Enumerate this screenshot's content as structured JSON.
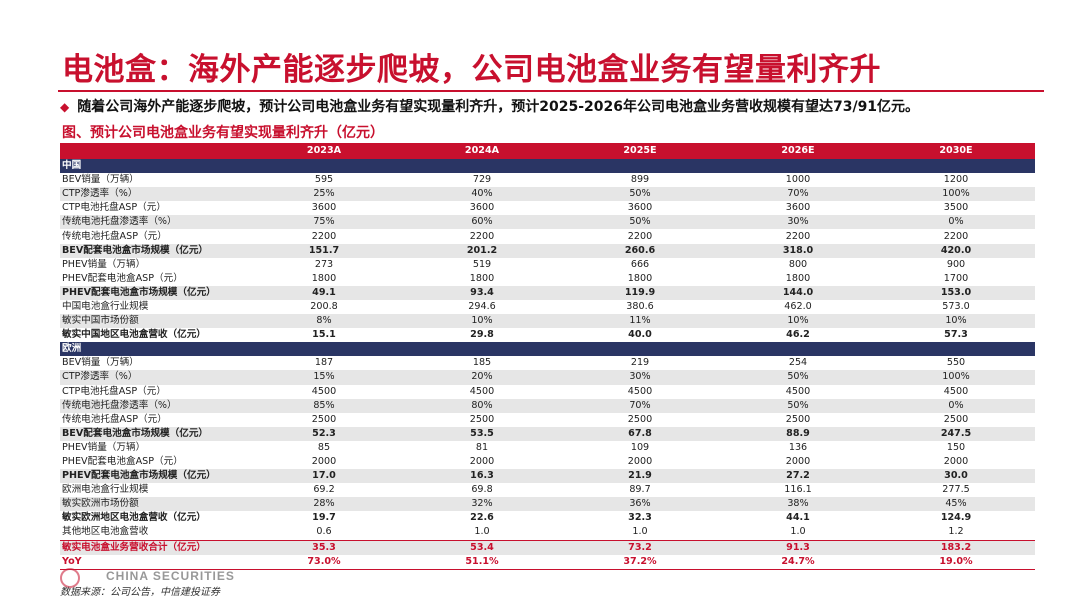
{
  "title": "电池盒：海外产能逐步爬坡，公司电池盒业务有望量利齐升",
  "bullet_mark": "◆",
  "bullet": "随着公司海外产能逐步爬坡，预计公司电池盒业务有望实现量利齐升，预计2025-2026年公司电池盒业务营收规模有望达73/91亿元。",
  "figure_title": "图、预计公司电池盒业务有望实现量利齐升（亿元）",
  "table": {
    "columns": [
      "",
      "2023A",
      "2024A",
      "2025E",
      "2026E",
      "2030E"
    ],
    "rows": [
      {
        "label": "中国",
        "style": "section",
        "values": [
          "",
          "",
          "",
          "",
          ""
        ]
      },
      {
        "label": "BEV销量（万辆）",
        "style": "",
        "values": [
          "595",
          "729",
          "899",
          "1000",
          "1200"
        ]
      },
      {
        "label": "CTP渗透率（%）",
        "style": "alt",
        "values": [
          "25%",
          "40%",
          "50%",
          "70%",
          "100%"
        ]
      },
      {
        "label": "CTP电池托盘ASP（元）",
        "style": "",
        "values": [
          "3600",
          "3600",
          "3600",
          "3600",
          "3500"
        ]
      },
      {
        "label": "传统电池托盘渗透率（%）",
        "style": "alt",
        "values": [
          "75%",
          "60%",
          "50%",
          "30%",
          "0%"
        ]
      },
      {
        "label": "传统电池托盘ASP（元）",
        "style": "",
        "values": [
          "2200",
          "2200",
          "2200",
          "2200",
          "2200"
        ]
      },
      {
        "label": "BEV配套电池盒市场规模（亿元）",
        "style": "alt bold",
        "values": [
          "151.7",
          "201.2",
          "260.6",
          "318.0",
          "420.0"
        ]
      },
      {
        "label": "PHEV销量（万辆）",
        "style": "",
        "values": [
          "273",
          "519",
          "666",
          "800",
          "900"
        ]
      },
      {
        "label": "PHEV配套电池盒ASP（元）",
        "style": "",
        "values": [
          "1800",
          "1800",
          "1800",
          "1800",
          "1700"
        ]
      },
      {
        "label": "PHEV配套电池盒市场规模（亿元）",
        "style": "alt bold",
        "values": [
          "49.1",
          "93.4",
          "119.9",
          "144.0",
          "153.0"
        ]
      },
      {
        "label": "中国电池盒行业规模",
        "style": "",
        "values": [
          "200.8",
          "294.6",
          "380.6",
          "462.0",
          "573.0"
        ]
      },
      {
        "label": "敏实中国市场份额",
        "style": "alt",
        "values": [
          "8%",
          "10%",
          "11%",
          "10%",
          "10%"
        ]
      },
      {
        "label": "敏实中国地区电池盒营收（亿元）",
        "style": "bold",
        "values": [
          "15.1",
          "29.8",
          "40.0",
          "46.2",
          "57.3"
        ]
      },
      {
        "label": "欧洲",
        "style": "section",
        "values": [
          "",
          "",
          "",
          "",
          ""
        ]
      },
      {
        "label": "BEV销量（万辆）",
        "style": "",
        "values": [
          "187",
          "185",
          "219",
          "254",
          "550"
        ]
      },
      {
        "label": "CTP渗透率（%）",
        "style": "alt",
        "values": [
          "15%",
          "20%",
          "30%",
          "50%",
          "100%"
        ]
      },
      {
        "label": "CTP电池托盘ASP（元）",
        "style": "",
        "values": [
          "4500",
          "4500",
          "4500",
          "4500",
          "4500"
        ]
      },
      {
        "label": "传统电池托盘渗透率（%）",
        "style": "alt",
        "values": [
          "85%",
          "80%",
          "70%",
          "50%",
          "0%"
        ]
      },
      {
        "label": "传统电池托盘ASP（元）",
        "style": "",
        "values": [
          "2500",
          "2500",
          "2500",
          "2500",
          "2500"
        ]
      },
      {
        "label": "BEV配套电池盒市场规模（亿元）",
        "style": "alt bold",
        "values": [
          "52.3",
          "53.5",
          "67.8",
          "88.9",
          "247.5"
        ]
      },
      {
        "label": "PHEV销量（万辆）",
        "style": "",
        "values": [
          "85",
          "81",
          "109",
          "136",
          "150"
        ]
      },
      {
        "label": "PHEV配套电池盒ASP（元）",
        "style": "",
        "values": [
          "2000",
          "2000",
          "2000",
          "2000",
          "2000"
        ]
      },
      {
        "label": "PHEV配套电池盒市场规模（亿元）",
        "style": "alt bold",
        "values": [
          "17.0",
          "16.3",
          "21.9",
          "27.2",
          "30.0"
        ]
      },
      {
        "label": "欧洲电池盒行业规模",
        "style": "",
        "values": [
          "69.2",
          "69.8",
          "89.7",
          "116.1",
          "277.5"
        ]
      },
      {
        "label": "敏实欧洲市场份额",
        "style": "alt",
        "values": [
          "28%",
          "32%",
          "36%",
          "38%",
          "45%"
        ]
      },
      {
        "label": "敏实欧洲地区电池盒营收（亿元）",
        "style": "bold",
        "values": [
          "19.7",
          "22.6",
          "32.3",
          "44.1",
          "124.9"
        ]
      },
      {
        "label": "其他地区电池盒营收",
        "style": "",
        "values": [
          "0.6",
          "1.0",
          "1.0",
          "1.0",
          "1.2"
        ]
      },
      {
        "label": "敏实电池盒业务营收合计（亿元）",
        "style": "alt red total",
        "values": [
          "35.3",
          "53.4",
          "73.2",
          "91.3",
          "183.2"
        ]
      },
      {
        "label": "YoY",
        "style": "red last",
        "values": [
          "73.0%",
          "51.1%",
          "37.2%",
          "24.7%",
          "19.0%"
        ]
      }
    ]
  },
  "logo_text": "CHINA SECURITIES",
  "source": "数据来源：公司公告，中信建投证券",
  "colors": {
    "accent": "#c8102e",
    "section": "#2a3564",
    "alt_row": "#e6e6e6"
  }
}
